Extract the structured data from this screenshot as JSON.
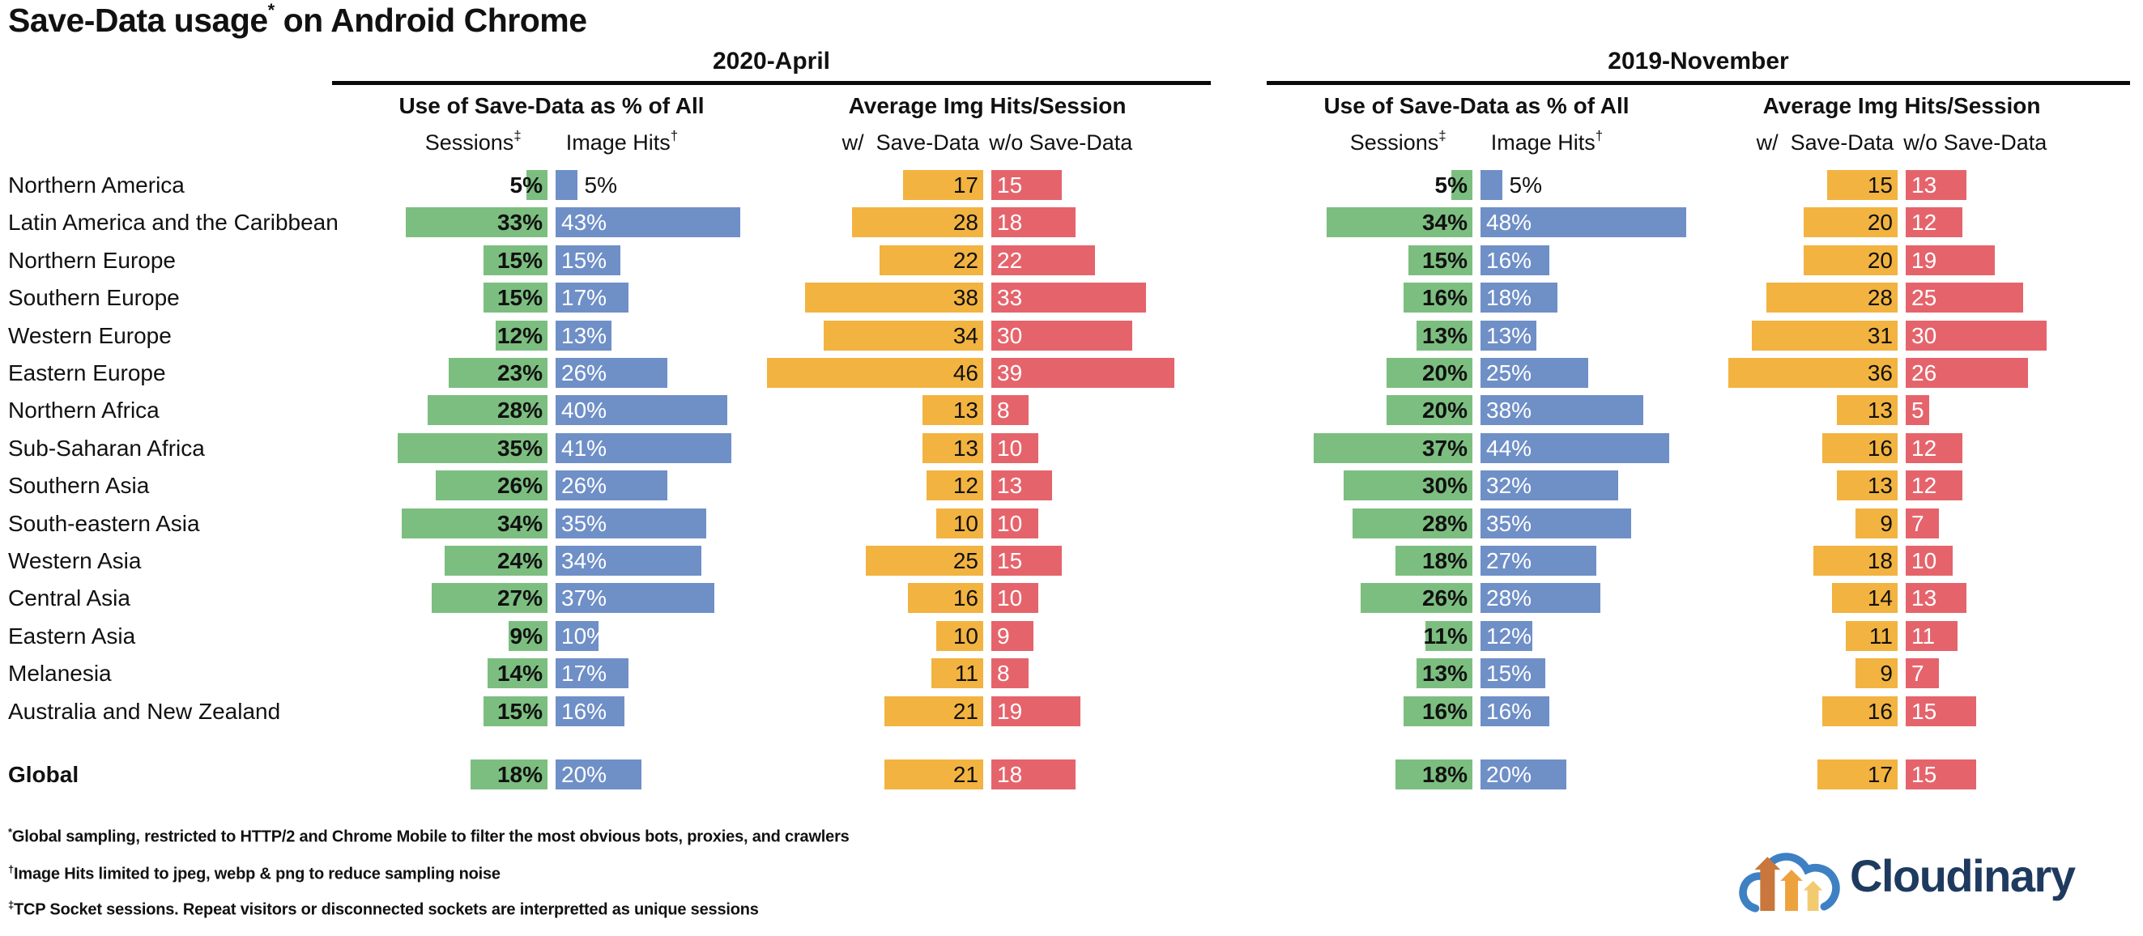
{
  "title": {
    "main": "Save-Data usage",
    "sup": "*",
    "rest": " on Android Chrome"
  },
  "periods": [
    {
      "label": "2020-April"
    },
    {
      "label": "2019-November"
    }
  ],
  "column_headers": {
    "pct_group": "Use of Save-Data as % of All",
    "hits_group": "Average Img Hits/Session",
    "sessions": "Sessions",
    "sessions_sup": "‡",
    "image_hits": "Image Hits",
    "image_hits_sup": "†",
    "with_save_data": "w/  Save-Data",
    "without_save_data": "w/o Save-Data"
  },
  "colors": {
    "sessions": "#7cbe80",
    "image_hits": "#6f8fc7",
    "hits_with": "#f2b340",
    "hits_without": "#e5646c",
    "rule": "#0a0a0a",
    "logo_navy": "#1e3a5f",
    "logo_blue": "#3e80c4",
    "logo_arrow_dark": "#c9773c",
    "logo_arrow_mid": "#eda23e",
    "logo_arrow_light": "#f2cb70"
  },
  "chart_data": {
    "type": "bar",
    "layout": "paired diverging horizontal bars, two periods side by side, value labels on bars, no axes/gridlines",
    "title": "Save-Data usage on Android Chrome",
    "periods": [
      "2020-April",
      "2019-November"
    ],
    "measures": [
      "Use of Save-Data as % of All Sessions",
      "Use of Save-Data as % of All Image Hits",
      "Average Img Hits/Session w/ Save-Data",
      "Average Img Hits/Session w/o Save-Data"
    ],
    "regions": [
      {
        "name": "Northern America",
        "p2020": {
          "sessions_pct": 5,
          "image_hits_pct": 5,
          "hits_with": 17,
          "hits_without": 15
        },
        "p2019": {
          "sessions_pct": 5,
          "image_hits_pct": 5,
          "hits_with": 15,
          "hits_without": 13
        }
      },
      {
        "name": "Latin America and the Caribbean",
        "p2020": {
          "sessions_pct": 33,
          "image_hits_pct": 43,
          "hits_with": 28,
          "hits_without": 18
        },
        "p2019": {
          "sessions_pct": 34,
          "image_hits_pct": 48,
          "hits_with": 20,
          "hits_without": 12
        }
      },
      {
        "name": "Northern Europe",
        "p2020": {
          "sessions_pct": 15,
          "image_hits_pct": 15,
          "hits_with": 22,
          "hits_without": 22
        },
        "p2019": {
          "sessions_pct": 15,
          "image_hits_pct": 16,
          "hits_with": 20,
          "hits_without": 19
        }
      },
      {
        "name": "Southern Europe",
        "p2020": {
          "sessions_pct": 15,
          "image_hits_pct": 17,
          "hits_with": 38,
          "hits_without": 33
        },
        "p2019": {
          "sessions_pct": 16,
          "image_hits_pct": 18,
          "hits_with": 28,
          "hits_without": 25
        }
      },
      {
        "name": "Western Europe",
        "p2020": {
          "sessions_pct": 12,
          "image_hits_pct": 13,
          "hits_with": 34,
          "hits_without": 30
        },
        "p2019": {
          "sessions_pct": 13,
          "image_hits_pct": 13,
          "hits_with": 31,
          "hits_without": 30
        }
      },
      {
        "name": "Eastern Europe",
        "p2020": {
          "sessions_pct": 23,
          "image_hits_pct": 26,
          "hits_with": 46,
          "hits_without": 39
        },
        "p2019": {
          "sessions_pct": 20,
          "image_hits_pct": 25,
          "hits_with": 36,
          "hits_without": 26
        }
      },
      {
        "name": "Northern Africa",
        "p2020": {
          "sessions_pct": 28,
          "image_hits_pct": 40,
          "hits_with": 13,
          "hits_without": 8
        },
        "p2019": {
          "sessions_pct": 20,
          "image_hits_pct": 38,
          "hits_with": 13,
          "hits_without": 5
        }
      },
      {
        "name": "Sub-Saharan Africa",
        "p2020": {
          "sessions_pct": 35,
          "image_hits_pct": 41,
          "hits_with": 13,
          "hits_without": 10
        },
        "p2019": {
          "sessions_pct": 37,
          "image_hits_pct": 44,
          "hits_with": 16,
          "hits_without": 12
        }
      },
      {
        "name": "Southern Asia",
        "p2020": {
          "sessions_pct": 26,
          "image_hits_pct": 26,
          "hits_with": 12,
          "hits_without": 13
        },
        "p2019": {
          "sessions_pct": 30,
          "image_hits_pct": 32,
          "hits_with": 13,
          "hits_without": 12
        }
      },
      {
        "name": "South-eastern Asia",
        "p2020": {
          "sessions_pct": 34,
          "image_hits_pct": 35,
          "hits_with": 10,
          "hits_without": 10
        },
        "p2019": {
          "sessions_pct": 28,
          "image_hits_pct": 35,
          "hits_with": 9,
          "hits_without": 7
        }
      },
      {
        "name": "Western Asia",
        "p2020": {
          "sessions_pct": 24,
          "image_hits_pct": 34,
          "hits_with": 25,
          "hits_without": 15
        },
        "p2019": {
          "sessions_pct": 18,
          "image_hits_pct": 27,
          "hits_with": 18,
          "hits_without": 10
        }
      },
      {
        "name": "Central Asia",
        "p2020": {
          "sessions_pct": 27,
          "image_hits_pct": 37,
          "hits_with": 16,
          "hits_without": 10
        },
        "p2019": {
          "sessions_pct": 26,
          "image_hits_pct": 28,
          "hits_with": 14,
          "hits_without": 13
        }
      },
      {
        "name": "Eastern Asia",
        "p2020": {
          "sessions_pct": 9,
          "image_hits_pct": 10,
          "hits_with": 10,
          "hits_without": 9
        },
        "p2019": {
          "sessions_pct": 11,
          "image_hits_pct": 12,
          "hits_with": 11,
          "hits_without": 11
        }
      },
      {
        "name": "Melanesia",
        "p2020": {
          "sessions_pct": 14,
          "image_hits_pct": 17,
          "hits_with": 11,
          "hits_without": 8
        },
        "p2019": {
          "sessions_pct": 13,
          "image_hits_pct": 15,
          "hits_with": 9,
          "hits_without": 7
        }
      },
      {
        "name": "Australia and New Zealand",
        "p2020": {
          "sessions_pct": 15,
          "image_hits_pct": 16,
          "hits_with": 21,
          "hits_without": 19
        },
        "p2019": {
          "sessions_pct": 16,
          "image_hits_pct": 16,
          "hits_with": 16,
          "hits_without": 15
        }
      },
      {
        "name": "Global",
        "p2020": {
          "sessions_pct": 18,
          "image_hits_pct": 20,
          "hits_with": 21,
          "hits_without": 18
        },
        "p2019": {
          "sessions_pct": 18,
          "image_hits_pct": 20,
          "hits_with": 17,
          "hits_without": 15
        }
      }
    ]
  },
  "footnotes": [
    {
      "sup": "*",
      "text": "Global sampling, restricted to HTTP/2 and Chrome Mobile to filter the most obvious bots, proxies, and crawlers"
    },
    {
      "sup": "†",
      "text": "Image Hits limited to jpeg, webp & png to reduce sampling noise"
    },
    {
      "sup": "‡",
      "text": "TCP Socket sessions. Repeat visitors or disconnected sockets are interpretted as unique sessions"
    }
  ],
  "logo": {
    "text": "Cloudinary"
  }
}
